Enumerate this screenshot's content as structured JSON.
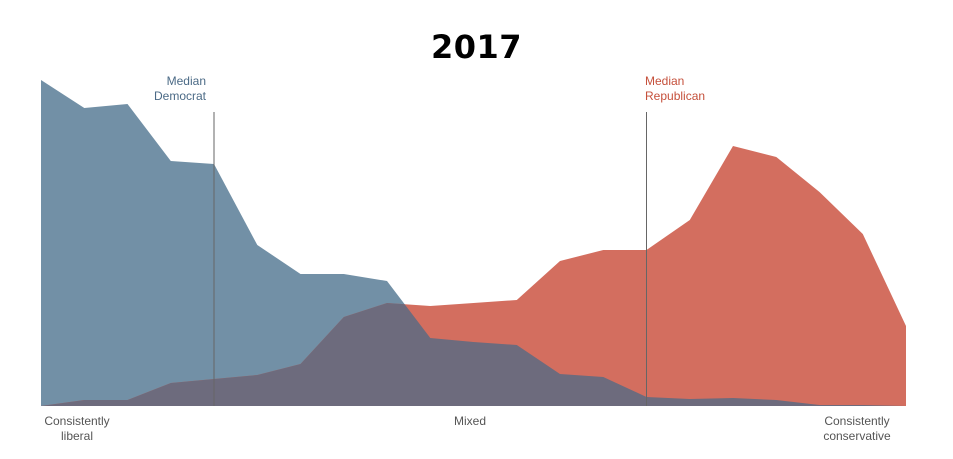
{
  "title": "2017",
  "annotations": {
    "median_democrat": [
      "Median",
      "Democrat"
    ],
    "median_republican": [
      "Median",
      "Republican"
    ]
  },
  "axis": {
    "left_label": [
      "Consistently",
      "liberal"
    ],
    "mid_label": "Mixed",
    "right_label": [
      "Consistently",
      "conservative"
    ]
  },
  "colors": {
    "democrat": "#7290a6",
    "republican": "#d36e5f",
    "overlap": "#6d6b7d",
    "median_line": "#666666"
  },
  "chart_data": {
    "type": "area",
    "title": "2017",
    "xlabel": "",
    "ylabel": "",
    "x": [
      -10,
      -9,
      -8,
      -7,
      -6,
      -5,
      -4,
      -3,
      -2,
      -1,
      0,
      1,
      2,
      3,
      4,
      5,
      6,
      7,
      8,
      9,
      10
    ],
    "x_tick_labels": {
      "-10": "Consistently liberal",
      "0": "Mixed",
      "10": "Consistently conservative"
    },
    "series": [
      {
        "name": "Democrats",
        "color": "#7290a6",
        "values": [
          326,
          298,
          302,
          245,
          242,
          161,
          132,
          132,
          125,
          68,
          64,
          61,
          32,
          29,
          9,
          7,
          8,
          6,
          1,
          1,
          0
        ]
      },
      {
        "name": "Republicans",
        "color": "#d36e5f",
        "values": [
          0,
          6,
          6,
          23,
          27,
          31,
          42,
          89,
          103,
          100,
          103,
          106,
          145,
          156,
          156,
          186,
          260,
          249,
          214,
          172,
          80
        ]
      }
    ],
    "medians": [
      {
        "name": "Median Democrat",
        "x": -6
      },
      {
        "name": "Median Republican",
        "x": 4
      }
    ],
    "grid": false,
    "legend": "none (inline annotations)"
  }
}
